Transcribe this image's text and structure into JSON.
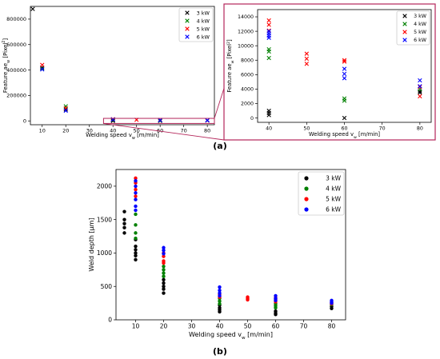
{
  "chart_data": [
    {
      "panel": "a-main",
      "type": "scatter",
      "marker": "x",
      "xlabel": "Welding speed v_w [m/min]",
      "ylabel": "Feature ae_w [Pixel²]",
      "xlim": [
        5,
        83
      ],
      "ylim": [
        -30000,
        900000
      ],
      "xticks": [
        10,
        20,
        30,
        40,
        50,
        60,
        70,
        80
      ],
      "yticks": [
        0,
        200000,
        400000,
        600000,
        800000
      ],
      "ytick_labels": [
        "0",
        "200000",
        "400000",
        "600000",
        "800000"
      ],
      "legend_position": "top-right",
      "zoom_box": {
        "x": [
          36,
          83
        ],
        "y": [
          -20000,
          20000
        ]
      },
      "series": [
        {
          "name": "3 kW",
          "color": "#000000",
          "points": [
            [
              6,
              880000
            ],
            [
              10,
              420000
            ],
            [
              20,
              90000
            ],
            [
              40,
              800
            ],
            [
              40,
              500
            ],
            [
              60,
              0
            ],
            [
              80,
              3600
            ]
          ]
        },
        {
          "name": "4 kW",
          "color": "#008000",
          "points": [
            [
              10,
              410000
            ],
            [
              20,
              115000
            ],
            [
              40,
              9000
            ],
            [
              40,
              8300
            ],
            [
              60,
              2500
            ],
            [
              80,
              3700
            ]
          ]
        },
        {
          "name": "5 kW",
          "color": "#ff0000",
          "points": [
            [
              10,
              440000
            ],
            [
              20,
              100000
            ],
            [
              40,
              13500
            ],
            [
              40,
              12800
            ],
            [
              50,
              8500
            ],
            [
              60,
              7800
            ],
            [
              80,
              3000
            ]
          ]
        },
        {
          "name": "6 kW",
          "color": "#0000ff",
          "points": [
            [
              10,
              405000
            ],
            [
              20,
              80000
            ],
            [
              40,
              11500
            ],
            [
              40,
              12000
            ],
            [
              60,
              6500
            ],
            [
              60,
              5500
            ],
            [
              80,
              5200
            ],
            [
              80,
              4300
            ]
          ]
        }
      ]
    },
    {
      "panel": "a-zoom",
      "type": "scatter",
      "marker": "x",
      "xlabel": "Welding speed v_w [m/min]",
      "ylabel": "Feature ae_w [Pixel²]",
      "xlim": [
        37,
        83
      ],
      "ylim": [
        -600,
        15000
      ],
      "xticks": [
        40,
        50,
        60,
        70,
        80
      ],
      "yticks": [
        0,
        2000,
        4000,
        6000,
        8000,
        10000,
        12000,
        14000
      ],
      "ytick_labels": [
        "0",
        "2000",
        "4000",
        "6000",
        "8000",
        "10000",
        "12000",
        "14000"
      ],
      "legend_position": "top-right",
      "series": [
        {
          "name": "3 kW",
          "color": "#000000",
          "points": [
            [
              40,
              1000
            ],
            [
              40,
              700
            ],
            [
              40,
              400
            ],
            [
              60,
              0
            ],
            [
              80,
              3700
            ],
            [
              80,
              3500
            ]
          ]
        },
        {
          "name": "4 kW",
          "color": "#008000",
          "points": [
            [
              40,
              9500
            ],
            [
              40,
              9200
            ],
            [
              40,
              8300
            ],
            [
              60,
              2700
            ],
            [
              60,
              2400
            ],
            [
              80,
              4000
            ]
          ]
        },
        {
          "name": "5 kW",
          "color": "#ff0000",
          "points": [
            [
              40,
              13500
            ],
            [
              40,
              12900
            ],
            [
              40,
              12100
            ],
            [
              50,
              8900
            ],
            [
              50,
              8200
            ],
            [
              50,
              7500
            ],
            [
              60,
              8000
            ],
            [
              60,
              7800
            ],
            [
              80,
              4300
            ],
            [
              80,
              3000
            ]
          ]
        },
        {
          "name": "6 kW",
          "color": "#0000ff",
          "points": [
            [
              40,
              12000
            ],
            [
              40,
              11700
            ],
            [
              40,
              11400
            ],
            [
              40,
              11100
            ],
            [
              60,
              6800
            ],
            [
              60,
              6100
            ],
            [
              60,
              5500
            ],
            [
              80,
              5200
            ],
            [
              80,
              4400
            ]
          ]
        }
      ]
    },
    {
      "panel": "b",
      "type": "scatter",
      "marker": "dot",
      "xlabel": "Welding speed v_w [m/min]",
      "ylabel": "Weld depth [μm]",
      "xlim": [
        3,
        85
      ],
      "ylim": [
        0,
        2250
      ],
      "xticks": [
        10,
        20,
        30,
        40,
        50,
        60,
        70,
        80
      ],
      "yticks": [
        0,
        500,
        1000,
        1500,
        2000
      ],
      "ytick_labels": [
        "0",
        "500",
        "1000",
        "1500",
        "2000"
      ],
      "legend_position": "top-right",
      "series": [
        {
          "name": "3 kW",
          "color": "#000000",
          "points": [
            [
              6,
              1620
            ],
            [
              6,
              1500
            ],
            [
              6,
              1440
            ],
            [
              6,
              1380
            ],
            [
              6,
              1300
            ],
            [
              10,
              1100
            ],
            [
              10,
              1050
            ],
            [
              10,
              1000
            ],
            [
              10,
              960
            ],
            [
              10,
              900
            ],
            [
              10,
              1200
            ],
            [
              20,
              600
            ],
            [
              20,
              550
            ],
            [
              20,
              500
            ],
            [
              20,
              460
            ],
            [
              20,
              400
            ],
            [
              40,
              220
            ],
            [
              40,
              180
            ],
            [
              40,
              150
            ],
            [
              40,
              120
            ],
            [
              60,
              130
            ],
            [
              60,
              100
            ],
            [
              60,
              80
            ],
            [
              80,
              200
            ],
            [
              80,
              170
            ]
          ]
        },
        {
          "name": "4 kW",
          "color": "#008000",
          "points": [
            [
              10,
              1580
            ],
            [
              10,
              1420
            ],
            [
              10,
              1300
            ],
            [
              10,
              1220
            ],
            [
              20,
              800
            ],
            [
              20,
              750
            ],
            [
              20,
              700
            ],
            [
              20,
              650
            ],
            [
              40,
              320
            ],
            [
              40,
              280
            ],
            [
              40,
              240
            ],
            [
              60,
              240
            ],
            [
              60,
              210
            ],
            [
              60,
              180
            ],
            [
              80,
              230
            ]
          ]
        },
        {
          "name": "5 kW",
          "color": "#ff0000",
          "points": [
            [
              10,
              2120
            ],
            [
              10,
              2050
            ],
            [
              10,
              1950
            ],
            [
              10,
              1850
            ],
            [
              20,
              1000
            ],
            [
              20,
              950
            ],
            [
              20,
              880
            ],
            [
              20,
              850
            ],
            [
              40,
              380
            ],
            [
              40,
              340
            ],
            [
              50,
              340
            ],
            [
              50,
              320
            ],
            [
              50,
              300
            ],
            [
              60,
              330
            ],
            [
              60,
              300
            ],
            [
              60,
              270
            ],
            [
              80,
              260
            ],
            [
              80,
              240
            ]
          ]
        },
        {
          "name": "6 kW",
          "color": "#0000ff",
          "points": [
            [
              10,
              2080
            ],
            [
              10,
              2000
            ],
            [
              10,
              1900
            ],
            [
              10,
              1800
            ],
            [
              10,
              1700
            ],
            [
              10,
              1640
            ],
            [
              20,
              1080
            ],
            [
              20,
              1040
            ],
            [
              20,
              990
            ],
            [
              40,
              490
            ],
            [
              40,
              440
            ],
            [
              40,
              400
            ],
            [
              40,
              360
            ],
            [
              60,
              360
            ],
            [
              60,
              320
            ],
            [
              60,
              290
            ],
            [
              80,
              290
            ],
            [
              80,
              270
            ],
            [
              80,
              250
            ]
          ]
        }
      ]
    }
  ],
  "labels": {
    "a": "(a)",
    "b": "(b)"
  },
  "legend_labels": [
    "3 kW",
    "4 kW",
    "5 kW",
    "6 kW"
  ],
  "highlight_color": "#b4265a"
}
